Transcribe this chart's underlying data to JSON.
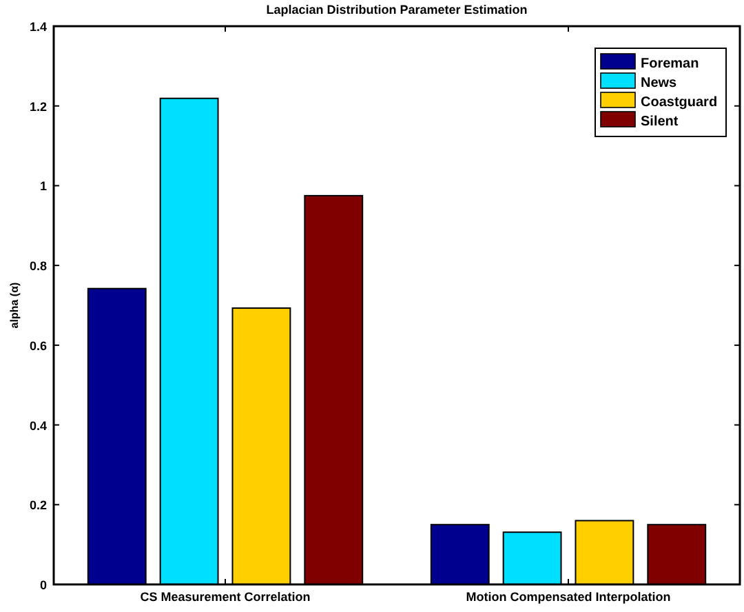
{
  "chart_data": {
    "type": "bar",
    "title": "Laplacian Distribution Parameter Estimation",
    "ylabel": "alpha (α)",
    "categories": [
      "CS Measurement Correlation",
      "Motion Compensated Interpolation"
    ],
    "series": [
      {
        "name": "Foreman",
        "color": "#00008f",
        "values": [
          0.742,
          0.15
        ]
      },
      {
        "name": "News",
        "color": "#00dfff",
        "values": [
          1.219,
          0.131
        ]
      },
      {
        "name": "Coastguard",
        "color": "#ffcf00",
        "values": [
          0.693,
          0.16
        ]
      },
      {
        "name": "Silent",
        "color": "#800000",
        "values": [
          0.975,
          0.15
        ]
      }
    ],
    "ylim": [
      0,
      1.4
    ],
    "yticks": [
      0,
      0.2,
      0.4,
      0.6,
      0.8,
      1,
      1.2,
      1.4
    ],
    "legend": "top right"
  }
}
